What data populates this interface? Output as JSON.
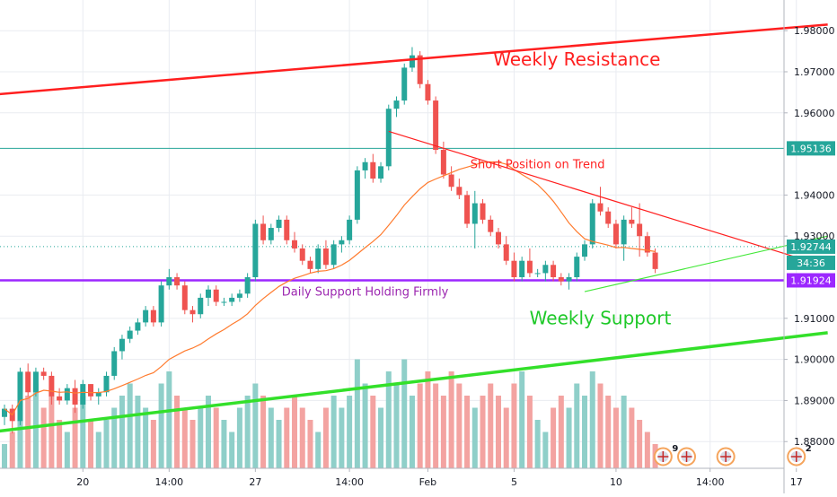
{
  "chart_data": {
    "type": "candlestick",
    "title": "",
    "xlabel": "",
    "ylabel": "",
    "ylim": [
      1.8735,
      1.9855
    ],
    "y_ticks": [
      {
        "value": 1.88,
        "label": "1.88000"
      },
      {
        "value": 1.89,
        "label": "1.89000"
      },
      {
        "value": 1.9,
        "label": "1.90000"
      },
      {
        "value": 1.91,
        "label": "1.91000"
      },
      {
        "value": 1.93,
        "label": "1.93000"
      },
      {
        "value": 1.94,
        "label": "1.94000"
      },
      {
        "value": 1.96,
        "label": "1.96000"
      },
      {
        "value": 1.97,
        "label": "1.97000"
      },
      {
        "value": 1.98,
        "label": "1.98000"
      }
    ],
    "x_ticks": [
      {
        "bar": 10,
        "label": "20"
      },
      {
        "bar": 21,
        "label": "14:00"
      },
      {
        "bar": 32,
        "label": "27"
      },
      {
        "bar": 44,
        "label": "14:00"
      },
      {
        "bar": 54,
        "label": "Feb"
      },
      {
        "bar": 65,
        "label": "5"
      },
      {
        "bar": 78,
        "label": "10"
      },
      {
        "bar": 90,
        "label": "14:00"
      },
      {
        "bar": 101,
        "label": "17"
      }
    ],
    "ohlc": [
      [
        1.886,
        1.889,
        1.884,
        1.888
      ],
      [
        1.888,
        1.889,
        1.882,
        1.885
      ],
      [
        1.885,
        1.898,
        1.884,
        1.897
      ],
      [
        1.897,
        1.899,
        1.891,
        1.892
      ],
      [
        1.892,
        1.898,
        1.891,
        1.897
      ],
      [
        1.897,
        1.898,
        1.895,
        1.896
      ],
      [
        1.896,
        1.897,
        1.889,
        1.891
      ],
      [
        1.891,
        1.893,
        1.889,
        1.89
      ],
      [
        1.89,
        1.894,
        1.889,
        1.893
      ],
      [
        1.893,
        1.895,
        1.887,
        1.889
      ],
      [
        1.889,
        1.895,
        1.888,
        1.894
      ],
      [
        1.894,
        1.894,
        1.89,
        1.891
      ],
      [
        1.891,
        1.893,
        1.889,
        1.892
      ],
      [
        1.892,
        1.897,
        1.891,
        1.896
      ],
      [
        1.896,
        1.903,
        1.895,
        1.902
      ],
      [
        1.902,
        1.906,
        1.9,
        1.905
      ],
      [
        1.905,
        1.908,
        1.904,
        1.907
      ],
      [
        1.907,
        1.91,
        1.906,
        1.909
      ],
      [
        1.909,
        1.913,
        1.908,
        1.912
      ],
      [
        1.912,
        1.913,
        1.908,
        1.909
      ],
      [
        1.909,
        1.919,
        1.908,
        1.918
      ],
      [
        1.918,
        1.922,
        1.917,
        1.92
      ],
      [
        1.92,
        1.921,
        1.917,
        1.918
      ],
      [
        1.918,
        1.919,
        1.911,
        1.912
      ],
      [
        1.912,
        1.913,
        1.909,
        1.911
      ],
      [
        1.911,
        1.916,
        1.91,
        1.915
      ],
      [
        1.915,
        1.918,
        1.913,
        1.917
      ],
      [
        1.917,
        1.918,
        1.913,
        1.914
      ],
      [
        1.914,
        1.915,
        1.913,
        1.914
      ],
      [
        1.914,
        1.916,
        1.913,
        1.915
      ],
      [
        1.915,
        1.917,
        1.914,
        1.916
      ],
      [
        1.916,
        1.921,
        1.915,
        1.92
      ],
      [
        1.92,
        1.934,
        1.919,
        1.933
      ],
      [
        1.933,
        1.935,
        1.928,
        1.929
      ],
      [
        1.929,
        1.933,
        1.928,
        1.932
      ],
      [
        1.932,
        1.935,
        1.931,
        1.934
      ],
      [
        1.934,
        1.935,
        1.928,
        1.929
      ],
      [
        1.929,
        1.931,
        1.926,
        1.927
      ],
      [
        1.927,
        1.928,
        1.923,
        1.924
      ],
      [
        1.924,
        1.925,
        1.921,
        1.922
      ],
      [
        1.922,
        1.928,
        1.921,
        1.927
      ],
      [
        1.927,
        1.929,
        1.922,
        1.923
      ],
      [
        1.923,
        1.929,
        1.922,
        1.928
      ],
      [
        1.928,
        1.93,
        1.926,
        1.929
      ],
      [
        1.929,
        1.935,
        1.928,
        1.934
      ],
      [
        1.934,
        1.947,
        1.933,
        1.946
      ],
      [
        1.946,
        1.949,
        1.944,
        1.948
      ],
      [
        1.948,
        1.95,
        1.943,
        1.944
      ],
      [
        1.944,
        1.948,
        1.943,
        1.947
      ],
      [
        1.947,
        1.962,
        1.946,
        1.961
      ],
      [
        1.961,
        1.964,
        1.959,
        1.963
      ],
      [
        1.963,
        1.972,
        1.962,
        1.971
      ],
      [
        1.971,
        1.976,
        1.97,
        1.974
      ],
      [
        1.974,
        1.975,
        1.966,
        1.967
      ],
      [
        1.967,
        1.968,
        1.962,
        1.963
      ],
      [
        1.963,
        1.964,
        1.95,
        1.951
      ],
      [
        1.951,
        1.953,
        1.944,
        1.945
      ],
      [
        1.945,
        1.947,
        1.941,
        1.942
      ],
      [
        1.942,
        1.944,
        1.939,
        1.94
      ],
      [
        1.94,
        1.941,
        1.932,
        1.933
      ],
      [
        1.933,
        1.941,
        1.927,
        1.938
      ],
      [
        1.938,
        1.939,
        1.933,
        1.934
      ],
      [
        1.934,
        1.935,
        1.93,
        1.931
      ],
      [
        1.931,
        1.932,
        1.927,
        1.928
      ],
      [
        1.928,
        1.93,
        1.923,
        1.924
      ],
      [
        1.924,
        1.926,
        1.919,
        1.92
      ],
      [
        1.92,
        1.925,
        1.919,
        1.924
      ],
      [
        1.924,
        1.927,
        1.92,
        1.921
      ],
      [
        1.921,
        1.922,
        1.92,
        1.921
      ],
      [
        1.921,
        1.924,
        1.919,
        1.923
      ],
      [
        1.923,
        1.924,
        1.919,
        1.92
      ],
      [
        1.92,
        1.921,
        1.918,
        1.919
      ],
      [
        1.919,
        1.921,
        1.917,
        1.92
      ],
      [
        1.92,
        1.926,
        1.919,
        1.925
      ],
      [
        1.925,
        1.929,
        1.924,
        1.928
      ],
      [
        1.928,
        1.939,
        1.927,
        1.938
      ],
      [
        1.938,
        1.942,
        1.935,
        1.936
      ],
      [
        1.936,
        1.937,
        1.932,
        1.933
      ],
      [
        1.933,
        1.934,
        1.927,
        1.928
      ],
      [
        1.928,
        1.935,
        1.924,
        1.934
      ],
      [
        1.934,
        1.937,
        1.932,
        1.933
      ],
      [
        1.933,
        1.938,
        1.925,
        1.93
      ],
      [
        1.93,
        1.931,
        1.925,
        1.926
      ],
      [
        1.926,
        1.927,
        1.921,
        1.922
      ]
    ],
    "volume": [
      2,
      3,
      4,
      6,
      7,
      5,
      6,
      4,
      3,
      5,
      6,
      4,
      3,
      4,
      5,
      6,
      7,
      6,
      5,
      4,
      7,
      8,
      6,
      5,
      4,
      5,
      6,
      5,
      4,
      3,
      5,
      6,
      7,
      6,
      5,
      4,
      5,
      6,
      5,
      4,
      3,
      5,
      6,
      5,
      6,
      9,
      7,
      6,
      5,
      8,
      7,
      9,
      6,
      7,
      8,
      7,
      6,
      8,
      7,
      6,
      5,
      6,
      7,
      6,
      5,
      7,
      8,
      6,
      4,
      3,
      5,
      6,
      5,
      7,
      6,
      8,
      7,
      6,
      5,
      6,
      5,
      4,
      3,
      2
    ],
    "moving_average": "20-period",
    "horizontal_lines": [
      {
        "value": 1.95136,
        "label": "1.95136",
        "style": "solid",
        "color": "#26a69a"
      },
      {
        "value": 1.92744,
        "label": "1.92744",
        "style": "dotted",
        "color": "#26a69a",
        "countdown": "34:36"
      },
      {
        "value": 1.91924,
        "label": "1.91924",
        "style": "solid",
        "color": "#9c27ff"
      }
    ],
    "trendlines": [
      {
        "name": "weekly-resistance",
        "color": "#ff1f1f",
        "width": 2.5,
        "from": [
          -1,
          1.9645
        ],
        "to": [
          105,
          1.9815
        ]
      },
      {
        "name": "weekly-support",
        "color": "#33e02a",
        "width": 3.5,
        "from": [
          -1,
          1.8825
        ],
        "to": [
          105,
          1.9065
        ]
      },
      {
        "name": "trend-line-short",
        "color": "#ff1f1f",
        "width": 1.2,
        "from": [
          49,
          1.9555
        ],
        "to": [
          105,
          1.9225
        ]
      },
      {
        "name": "trend-line-rising",
        "color": "#44e83a",
        "width": 1.2,
        "from": [
          74,
          1.9165
        ],
        "to": [
          105,
          1.93
        ]
      }
    ],
    "annotations": [
      {
        "text": "Weekly Resistance",
        "color": "#ff1f1f",
        "size": "big",
        "bar": 73,
        "value": 1.9715
      },
      {
        "text": "Short Position on Trend",
        "color": "#ff1f1f",
        "size": "small",
        "bar": 68,
        "value": 1.9465
      },
      {
        "text": "Daily Support Holding Firmly",
        "color": "#9c27b0",
        "size": "small",
        "bar": 46,
        "value": 1.9155
      },
      {
        "text": "Weekly Support",
        "color": "#1fc929",
        "size": "big",
        "bar": 76,
        "value": 1.9085
      }
    ],
    "event_markers": [
      {
        "bar": 84,
        "badge": "9"
      },
      {
        "bar": 87,
        "badge": ""
      },
      {
        "bar": 92,
        "badge": ""
      },
      {
        "bar": 101,
        "badge": "2"
      }
    ],
    "colors": {
      "up": "#26a69a",
      "down": "#ef5350",
      "up_volume": "#8fcfc9",
      "down_volume": "#f3a3a1",
      "moving_average": "#ff7b2e",
      "grid": "#e9ecf1"
    }
  }
}
